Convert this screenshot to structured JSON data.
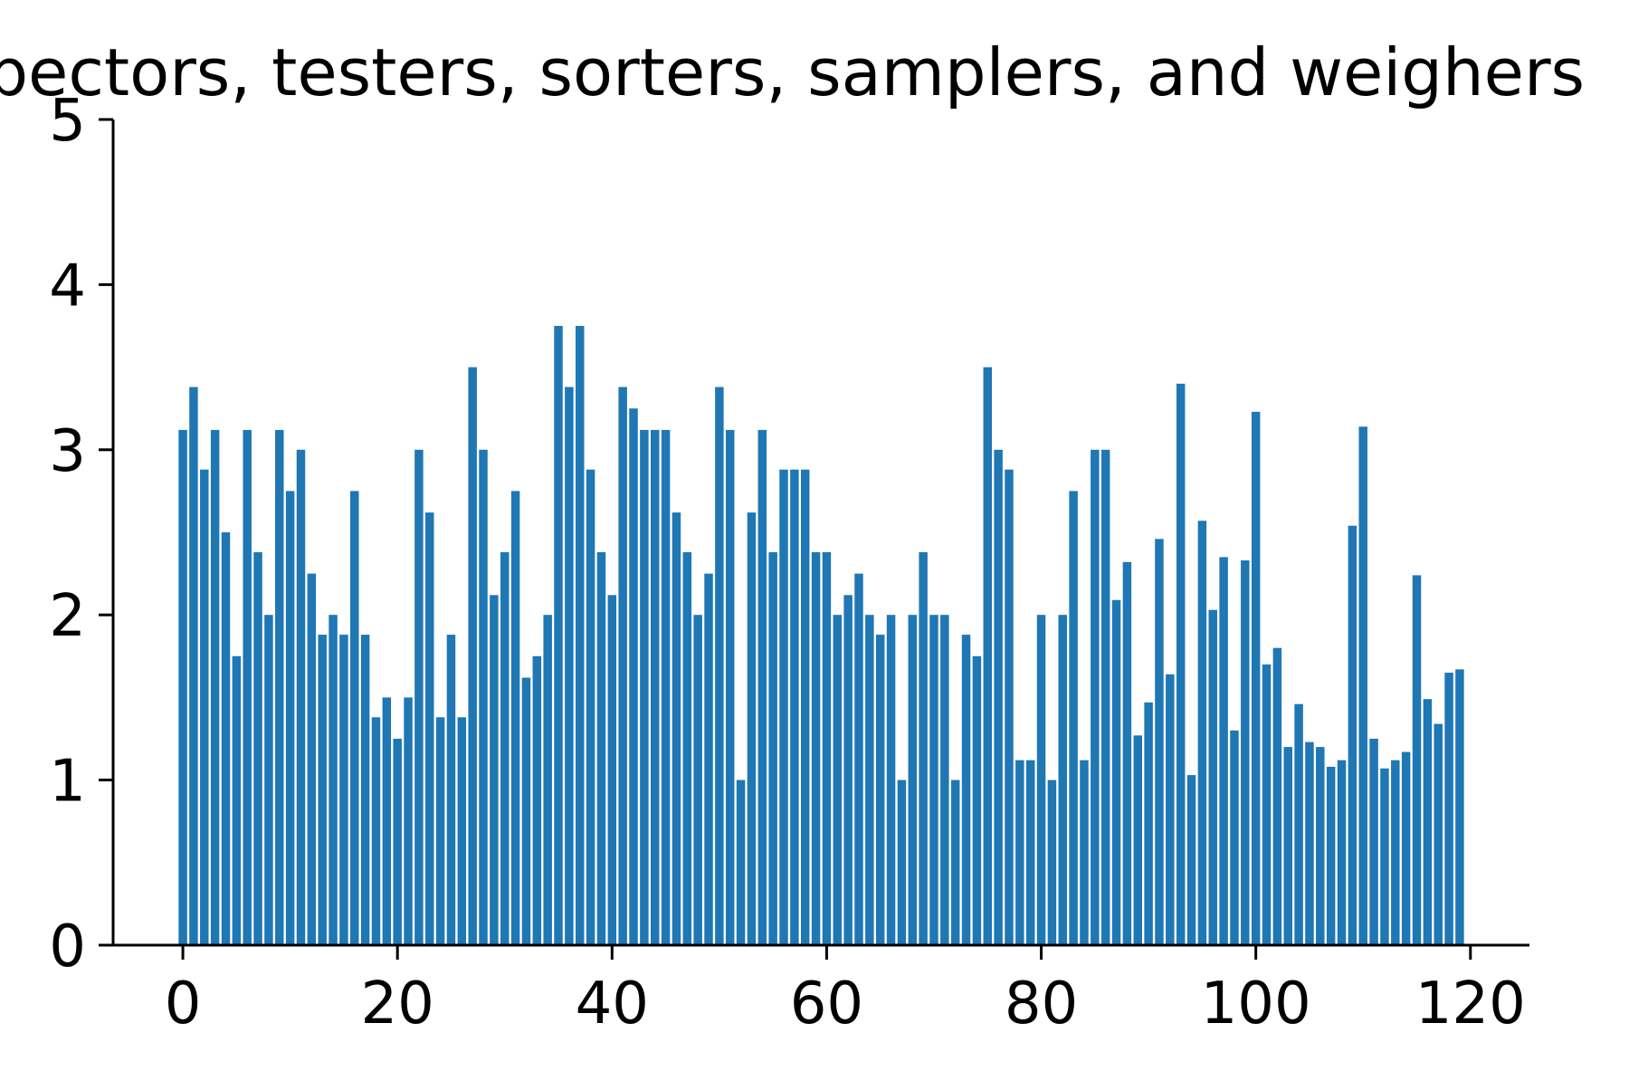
{
  "chart_data": {
    "type": "bar",
    "title": "Inspectors, testers, sorters, samplers, and weighers",
    "xlabel": "",
    "ylabel": "",
    "x": [
      0,
      1,
      2,
      3,
      4,
      5,
      6,
      7,
      8,
      9,
      10,
      11,
      12,
      13,
      14,
      15,
      16,
      17,
      18,
      19,
      20,
      21,
      22,
      23,
      24,
      25,
      26,
      27,
      28,
      29,
      30,
      31,
      32,
      33,
      34,
      35,
      36,
      37,
      38,
      39,
      40,
      41,
      42,
      43,
      44,
      45,
      46,
      47,
      48,
      49,
      50,
      51,
      52,
      53,
      54,
      55,
      56,
      57,
      58,
      59,
      60,
      61,
      62,
      63,
      64,
      65,
      66,
      67,
      68,
      69,
      70,
      71,
      72,
      73,
      74,
      75,
      76,
      77,
      78,
      79,
      80,
      81,
      82,
      83,
      84,
      85,
      86,
      87,
      88,
      89,
      90,
      91,
      92,
      93,
      94,
      95,
      96,
      97,
      98,
      99,
      100,
      101,
      102,
      103,
      104,
      105,
      106,
      107,
      108,
      109,
      110,
      111,
      112,
      113,
      114,
      115,
      116,
      117,
      118,
      119
    ],
    "values": [
      3.12,
      3.38,
      2.88,
      3.12,
      2.5,
      1.75,
      3.12,
      2.38,
      2.0,
      3.12,
      2.75,
      3.0,
      2.25,
      1.88,
      2.0,
      1.88,
      2.75,
      1.88,
      1.38,
      1.5,
      1.25,
      1.5,
      3.0,
      2.62,
      1.38,
      1.88,
      1.38,
      3.5,
      3.0,
      2.12,
      2.38,
      2.75,
      1.62,
      1.75,
      2.0,
      3.75,
      3.38,
      3.75,
      2.88,
      2.38,
      2.12,
      3.38,
      3.25,
      3.12,
      3.12,
      3.12,
      2.62,
      2.38,
      2.0,
      2.25,
      3.38,
      3.12,
      1.0,
      2.62,
      3.12,
      2.38,
      2.88,
      2.88,
      2.88,
      2.38,
      2.38,
      2.0,
      2.12,
      2.25,
      2.0,
      1.88,
      2.0,
      1.0,
      2.0,
      2.38,
      2.0,
      2.0,
      1.0,
      1.88,
      1.75,
      3.5,
      3.0,
      2.88,
      1.12,
      1.12,
      2.0,
      1.0,
      2.0,
      2.75,
      1.12,
      3.0,
      3.0,
      2.09,
      2.32,
      1.27,
      1.47,
      2.46,
      1.64,
      3.4,
      1.03,
      2.57,
      2.03,
      2.35,
      1.3,
      2.33,
      3.23,
      1.7,
      1.8,
      1.2,
      1.46,
      1.23,
      1.2,
      1.08,
      1.12,
      2.54,
      3.14,
      1.25,
      1.07,
      1.12,
      1.17,
      2.24,
      1.49,
      1.34,
      1.65,
      1.67
    ],
    "xlim": [
      -6.5,
      125.5
    ],
    "ylim": [
      0,
      5
    ],
    "xticks": [
      "0",
      "20",
      "40",
      "60",
      "80",
      "100",
      "120"
    ],
    "yticks": [
      "0",
      "1",
      "2",
      "3",
      "4",
      "5"
    ],
    "grid": false,
    "bar_color": "#1f77b4",
    "axis_color": "#000000"
  }
}
